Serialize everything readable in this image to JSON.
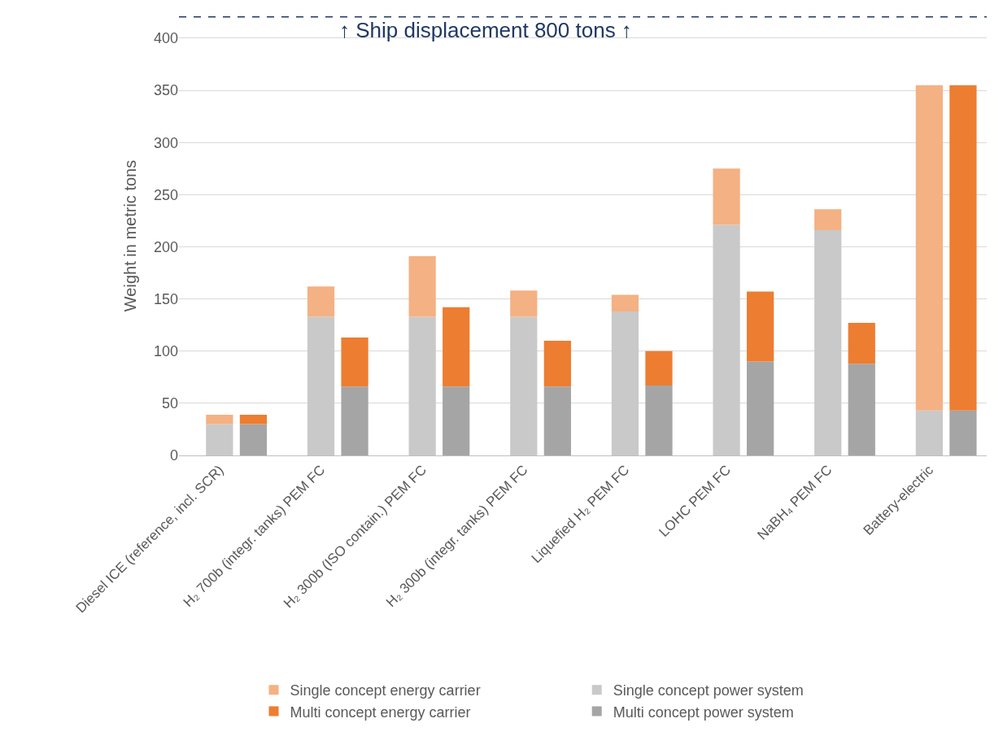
{
  "chart_data": {
    "type": "bar",
    "stacked": true,
    "ylabel": "Weight in metric tons",
    "categories": [
      "Diesel ICE (reference, incl. SCR)",
      null,
      null,
      "H₂ 700b (integr. tanks) PEM FC",
      null,
      null,
      "H₂ 300b (ISO contain.) PEM FC",
      null,
      null,
      "H₂ 300b (integr. tanks) PEM FC",
      null,
      null,
      "Liquefied H₂ PEM FC",
      null,
      null,
      "LOHC PEM FC",
      null,
      null,
      "NaBH₄ PEM FC",
      null,
      null,
      "Battery-electric",
      null
    ],
    "series": [
      {
        "name": "Single concept power system",
        "color": "#c9c9c9",
        "values": [
          30,
          null,
          null,
          133,
          null,
          null,
          133,
          null,
          null,
          133,
          null,
          null,
          138,
          null,
          null,
          221,
          null,
          null,
          216,
          null,
          null,
          43,
          null
        ]
      },
      {
        "name": "Multi concept power system",
        "color": "#a5a5a5",
        "values": [
          null,
          30,
          null,
          null,
          66,
          null,
          null,
          66,
          null,
          null,
          66,
          null,
          null,
          67,
          null,
          null,
          90,
          null,
          null,
          88,
          null,
          null,
          43
        ]
      },
      {
        "name": "Single concept energy carrier",
        "color": "#f4b183",
        "values": [
          9,
          null,
          null,
          29,
          null,
          null,
          58,
          null,
          null,
          25,
          null,
          null,
          16,
          null,
          null,
          54,
          null,
          null,
          20,
          null,
          null,
          312,
          null
        ]
      },
      {
        "name": "Multi concept energy carrier",
        "color": "#ed7d31",
        "values": [
          null,
          9,
          null,
          null,
          47,
          null,
          null,
          76,
          null,
          null,
          44,
          null,
          null,
          33,
          null,
          null,
          67,
          null,
          null,
          39,
          null,
          null,
          312
        ]
      }
    ],
    "ylim": [
      0,
      421
    ],
    "yticks": [
      0,
      50,
      100,
      150,
      200,
      250,
      300,
      350,
      400
    ],
    "grid": "y",
    "legend": "bottom",
    "ref_lines": [
      {
        "axis": "y",
        "value": 421,
        "label": "↑ Ship displacement 800 tons ↑",
        "color": "#1f3864",
        "line_style": "dashed"
      }
    ]
  }
}
